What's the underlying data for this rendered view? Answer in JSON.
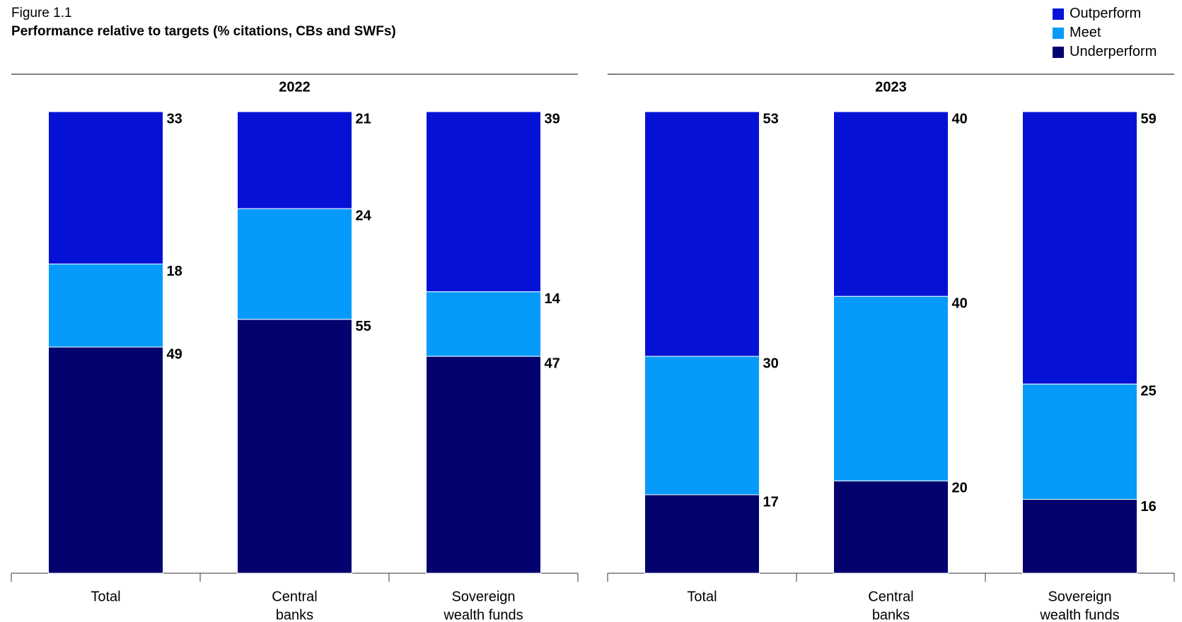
{
  "figure_label": "Figure 1.1",
  "title": "Performance relative to targets (% citations, CBs and SWFs)",
  "legend": [
    {
      "name": "Outperform",
      "color": "#0512d6"
    },
    {
      "name": "Meet",
      "color": "#069bfb"
    },
    {
      "name": "Underperform",
      "color": "#03026f"
    }
  ],
  "chart_data": [
    {
      "type": "bar",
      "stacked": true,
      "title": "2022",
      "categories": [
        [
          "Total"
        ],
        [
          "Central",
          "banks"
        ],
        [
          "Sovereign",
          "wealth funds"
        ]
      ],
      "series": [
        {
          "name": "Underperform",
          "values": [
            49,
            55,
            47
          ]
        },
        {
          "name": "Meet",
          "values": [
            18,
            24,
            14
          ]
        },
        {
          "name": "Outperform",
          "values": [
            33,
            21,
            39
          ]
        }
      ],
      "ylim": [
        0,
        100
      ],
      "grid": false,
      "legend": "top-right"
    },
    {
      "type": "bar",
      "stacked": true,
      "title": "2023",
      "categories": [
        [
          "Total"
        ],
        [
          "Central",
          "banks"
        ],
        [
          "Sovereign",
          "wealth funds"
        ]
      ],
      "series": [
        {
          "name": "Underperform",
          "values": [
            17,
            20,
            16
          ]
        },
        {
          "name": "Meet",
          "values": [
            30,
            40,
            25
          ]
        },
        {
          "name": "Outperform",
          "values": [
            53,
            40,
            59
          ]
        }
      ],
      "ylim": [
        0,
        100
      ],
      "grid": false,
      "legend": "top-right"
    }
  ]
}
